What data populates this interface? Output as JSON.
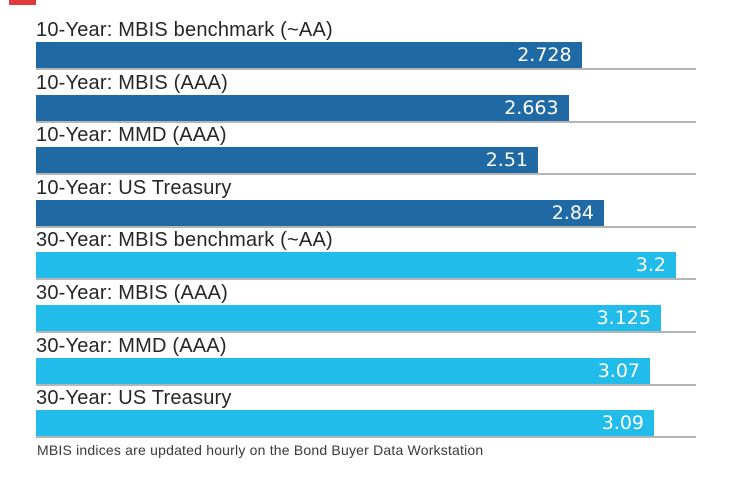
{
  "chart_data": {
    "type": "bar",
    "orientation": "horizontal",
    "title": "",
    "xlabel": "",
    "ylabel": "",
    "xlim": [
      0,
      3.3
    ],
    "grid": "row-baselines-only",
    "legend": "none",
    "categories": [
      "10-Year: MBIS benchmark (~AA)",
      "10-Year: MBIS (AAA)",
      "10-Year: MMD (AAA)",
      "10-Year: US Treasury",
      "30-Year: MBIS benchmark (~AA)",
      "30-Year: MBIS (AAA)",
      "30-Year: MMD (AAA)",
      "30-Year: US Treasury"
    ],
    "values": [
      2.728,
      2.663,
      2.51,
      2.84,
      3.2,
      3.125,
      3.07,
      3.09
    ],
    "bars": [
      {
        "label": "10-Year: MBIS benchmark (~AA)",
        "value": 2.728,
        "value_label": "2.728",
        "group": "10-year"
      },
      {
        "label": "10-Year: MBIS (AAA)",
        "value": 2.663,
        "value_label": "2.663",
        "group": "10-year"
      },
      {
        "label": "10-Year: MMD (AAA)",
        "value": 2.51,
        "value_label": "2.51",
        "group": "10-year"
      },
      {
        "label": "10-Year: US Treasury",
        "value": 2.84,
        "value_label": "2.84",
        "group": "10-year"
      },
      {
        "label": "30-Year: MBIS benchmark (~AA)",
        "value": 3.2,
        "value_label": "3.2",
        "group": "30-year"
      },
      {
        "label": "30-Year: MBIS (AAA)",
        "value": 3.125,
        "value_label": "3.125",
        "group": "30-year"
      },
      {
        "label": "30-Year: MMD (AAA)",
        "value": 3.07,
        "value_label": "3.07",
        "group": "30-year"
      },
      {
        "label": "30-Year: US Treasury",
        "value": 3.09,
        "value_label": "3.09",
        "group": "30-year"
      }
    ],
    "colors": {
      "10-year": "#1F6AA5",
      "30-year": "#22BCEB",
      "baseline": "#b5b5b5",
      "value_text": "#ffffff",
      "label_text": "#262626",
      "accent_red": "#e23a3c"
    },
    "footnote": "MBIS indices are updated hourly on the Bond Buyer Data Workstation"
  }
}
